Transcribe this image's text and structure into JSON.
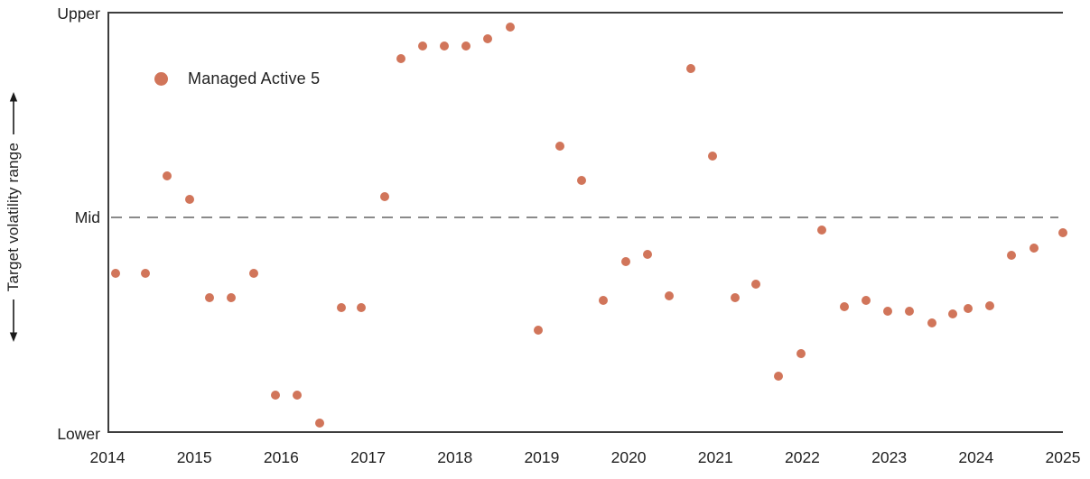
{
  "chart_data": {
    "type": "scatter",
    "title": "",
    "ylabel": "Target volatility range",
    "y_axis_labels": [
      "Upper",
      "Mid",
      "Lower"
    ],
    "x_ticks": [
      2014,
      2015,
      2016,
      2017,
      2018,
      2019,
      2020,
      2021,
      2022,
      2023,
      2024,
      2025
    ],
    "xlim": [
      2014,
      2025
    ],
    "ylim": [
      0,
      1
    ],
    "mid_line_y": 0.514,
    "grid": false,
    "legend_position": "upper-left-inside",
    "series": [
      {
        "name": "Managed Active 5",
        "color": "#d1755a",
        "marker": "circle",
        "points": [
          [
            2014.07,
            0.379
          ],
          [
            2014.42,
            0.379
          ],
          [
            2014.67,
            0.612
          ],
          [
            2014.93,
            0.555
          ],
          [
            2015.16,
            0.319
          ],
          [
            2015.41,
            0.319
          ],
          [
            2015.67,
            0.379
          ],
          [
            2015.92,
            0.086
          ],
          [
            2016.17,
            0.086
          ],
          [
            2016.43,
            0.019
          ],
          [
            2016.68,
            0.296
          ],
          [
            2016.91,
            0.296
          ],
          [
            2017.18,
            0.561
          ],
          [
            2017.36,
            0.893
          ],
          [
            2017.61,
            0.923
          ],
          [
            2017.86,
            0.923
          ],
          [
            2018.11,
            0.923
          ],
          [
            2018.36,
            0.94
          ],
          [
            2018.62,
            0.968
          ],
          [
            2018.95,
            0.242
          ],
          [
            2019.2,
            0.683
          ],
          [
            2019.45,
            0.6
          ],
          [
            2019.7,
            0.313
          ],
          [
            2019.96,
            0.407
          ],
          [
            2020.21,
            0.424
          ],
          [
            2020.46,
            0.325
          ],
          [
            2020.71,
            0.869
          ],
          [
            2020.96,
            0.659
          ],
          [
            2021.22,
            0.319
          ],
          [
            2021.46,
            0.353
          ],
          [
            2021.72,
            0.131
          ],
          [
            2021.98,
            0.186
          ],
          [
            2022.22,
            0.482
          ],
          [
            2022.48,
            0.298
          ],
          [
            2022.73,
            0.313
          ],
          [
            2022.98,
            0.287
          ],
          [
            2023.23,
            0.287
          ],
          [
            2023.49,
            0.259
          ],
          [
            2023.73,
            0.28
          ],
          [
            2023.91,
            0.293
          ],
          [
            2024.16,
            0.3
          ],
          [
            2024.41,
            0.422
          ],
          [
            2024.67,
            0.439
          ],
          [
            2025.0,
            0.475
          ]
        ]
      }
    ]
  },
  "colors": {
    "accent": "#d1755a",
    "axis": "#3d3d3d",
    "dash_line": "#8a8a8a",
    "text": "#1f1f1f",
    "background": "#ffffff"
  }
}
